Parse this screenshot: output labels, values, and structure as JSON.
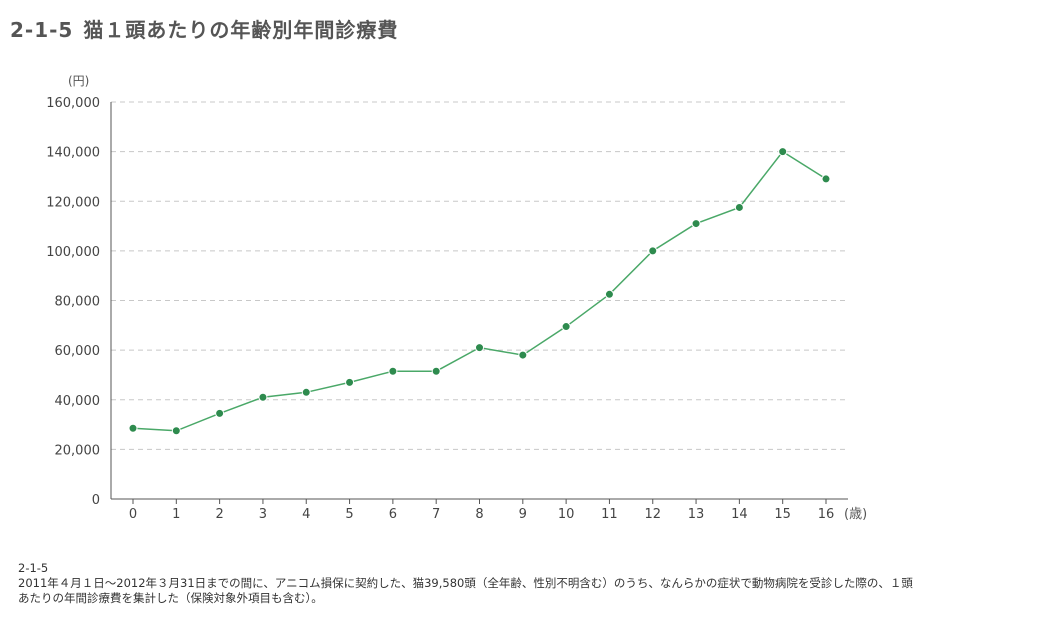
{
  "title": {
    "number": "2-1-5",
    "text": "猫１頭あたりの年齢別年間診療費"
  },
  "chart_data": {
    "type": "line",
    "ylabel": "(円)",
    "xlabel": "(歳)",
    "ylim": [
      0,
      160000
    ],
    "yticks": [
      "0",
      "20,000",
      "40,000",
      "60,000",
      "80,000",
      "100,000",
      "120,000",
      "140,000",
      "160,000"
    ],
    "categories": [
      "0",
      "1",
      "2",
      "3",
      "4",
      "5",
      "6",
      "7",
      "8",
      "9",
      "10",
      "11",
      "12",
      "13",
      "14",
      "15",
      "16"
    ],
    "series": [
      {
        "values": [
          28500,
          27500,
          34500,
          41000,
          43000,
          47000,
          51500,
          51500,
          61000,
          58000,
          69500,
          82500,
          100000,
          111000,
          117500,
          140000,
          129000
        ]
      }
    ],
    "grid": true,
    "line_color": "#4aa868",
    "marker_color": "#2e8b4e"
  },
  "note": {
    "id": "2-1-5",
    "line1": "2011年４月１日〜2012年３月31日までの間に、アニコム損保に契約した、猫39,580頭（全年齢、性別不明含む）のうち、なんらかの症状で動物病院を受診した際の、１頭",
    "line2": "あたりの年間診療費を集計した（保険対象外項目も含む）。"
  }
}
